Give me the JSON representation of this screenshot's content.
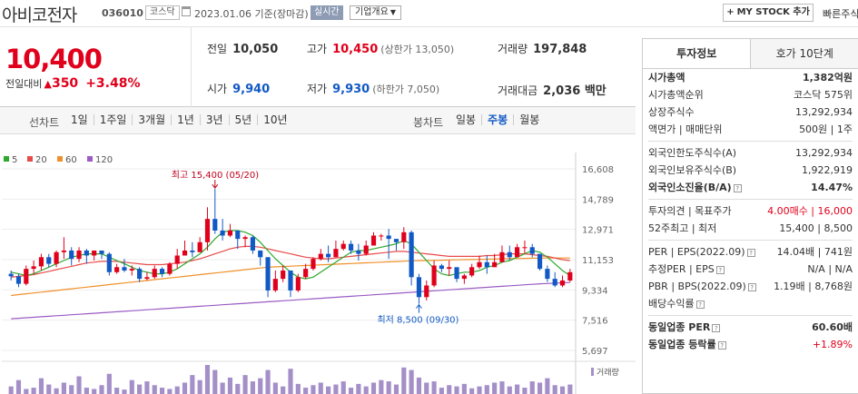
{
  "header": {
    "company_name": "아비코전자",
    "code": "036010",
    "market": "코스닥",
    "date_text": "2023.01.06  기준(장마감)",
    "realtime_label": "실시간",
    "company_overview_label": "기업개요",
    "mystock_label": "MY STOCK 추가",
    "quick_search_label": "빠른주식"
  },
  "summary": {
    "price": "10,400",
    "change_label": "전일대비",
    "change_value": "350",
    "change_pct": "+3.48%",
    "prev_close_label": "전일",
    "prev_close": "10,050",
    "high_label": "고가",
    "high": "10,450",
    "upper_limit": "(상한가 13,050)",
    "volume_label": "거래량",
    "volume": "197,848",
    "open_label": "시가",
    "open": "9,940",
    "low_label": "저가",
    "low": "9,930",
    "lower_limit": "(하한가 7,050)",
    "amount_label": "거래대금",
    "amount": "2,036 백만"
  },
  "period": {
    "label": "선차트",
    "tabs": [
      "1일",
      "1주일",
      "3개월",
      "1년",
      "3년",
      "5년",
      "10년"
    ],
    "bong_label": "봉차트",
    "bong_tabs": [
      "일봉",
      "주봉",
      "월봉"
    ],
    "bong_active": 1
  },
  "chart_data": {
    "type": "candlestick",
    "legend": [
      {
        "name": "5",
        "color": "#2fa82f"
      },
      {
        "name": "20",
        "color": "#e84a4a"
      },
      {
        "name": "60",
        "color": "#f0902a"
      },
      {
        "name": "120",
        "color": "#9a5cc4"
      }
    ],
    "y_ticks": [
      "16,608",
      "14,789",
      "12,971",
      "11,153",
      "9,334",
      "7,516",
      "5,697"
    ],
    "ylim": [
      5697,
      16608
    ],
    "high_annotation": "최고 15,400 (05/20)",
    "low_annotation": "최저 8,500 (09/30)",
    "volume_label": "거래량",
    "candles": [
      [
        10300,
        10150,
        10500,
        9900
      ],
      [
        10150,
        9700,
        10300,
        9500
      ],
      [
        9700,
        10600,
        10800,
        9600
      ],
      [
        10600,
        10750,
        11100,
        10300
      ],
      [
        10750,
        11300,
        11500,
        10500
      ],
      [
        11300,
        10900,
        11500,
        10700
      ],
      [
        10900,
        11600,
        11700,
        10700
      ],
      [
        11600,
        11700,
        12500,
        11200
      ],
      [
        11700,
        11200,
        11900,
        10800
      ],
      [
        11200,
        11700,
        11900,
        11000
      ],
      [
        11700,
        11400,
        11800,
        10900
      ],
      [
        11400,
        11700,
        11700,
        11100
      ],
      [
        11700,
        11500,
        11700,
        11200
      ],
      [
        11500,
        10400,
        11600,
        10200
      ],
      [
        10400,
        10700,
        10900,
        10300
      ],
      [
        10700,
        10500,
        11200,
        10400
      ],
      [
        10500,
        10600,
        10800,
        10200
      ],
      [
        10600,
        10000,
        10700,
        9800
      ],
      [
        10000,
        10100,
        10400,
        9900
      ],
      [
        10100,
        10600,
        10800,
        10000
      ],
      [
        10600,
        10300,
        10700,
        10100
      ],
      [
        10300,
        10900,
        11000,
        10200
      ],
      [
        10900,
        11400,
        11800,
        10600
      ],
      [
        11400,
        11700,
        12300,
        11400
      ],
      [
        11700,
        11600,
        12200,
        11300
      ],
      [
        11600,
        12200,
        12500,
        11900
      ],
      [
        12200,
        13600,
        14300,
        11700
      ],
      [
        13600,
        12900,
        15400,
        12700
      ],
      [
        12900,
        12600,
        13600,
        12300
      ],
      [
        12600,
        12900,
        13300,
        12500
      ],
      [
        12900,
        12400,
        12800,
        11800
      ],
      [
        12400,
        12500,
        12600,
        11900
      ],
      [
        12500,
        11700,
        12600,
        11500
      ],
      [
        11700,
        11300,
        11700,
        10800
      ],
      [
        11300,
        9300,
        11300,
        8900
      ],
      [
        9300,
        10000,
        10500,
        9200
      ],
      [
        10000,
        10500,
        10800,
        9800
      ],
      [
        10500,
        9300,
        10400,
        8900
      ],
      [
        9300,
        10100,
        10300,
        9200
      ],
      [
        10100,
        10600,
        10900,
        10000
      ],
      [
        10600,
        11200,
        11300,
        10500
      ],
      [
        11200,
        11500,
        11800,
        11100
      ],
      [
        11500,
        11300,
        12000,
        11000
      ],
      [
        11300,
        11800,
        12300,
        11300
      ],
      [
        11800,
        12100,
        12300,
        11700
      ],
      [
        12100,
        11700,
        12300,
        11500
      ],
      [
        11700,
        11500,
        12100,
        11100
      ],
      [
        11500,
        12000,
        12300,
        11400
      ],
      [
        12000,
        12600,
        12800,
        12000
      ],
      [
        12600,
        12600,
        12700,
        12300
      ],
      [
        12600,
        12400,
        13000,
        11200
      ],
      [
        12400,
        12200,
        12400,
        11700
      ],
      [
        12200,
        12800,
        13100,
        11800
      ],
      [
        12800,
        10100,
        12900,
        9600
      ],
      [
        10100,
        8900,
        10300,
        8500
      ],
      [
        8900,
        9600,
        9900,
        8700
      ],
      [
        9600,
        10800,
        11100,
        9500
      ],
      [
        10800,
        10600,
        10900,
        10400
      ],
      [
        10600,
        10700,
        11100,
        10200
      ],
      [
        10700,
        10000,
        10600,
        9800
      ],
      [
        10000,
        10200,
        10300,
        9700
      ],
      [
        10200,
        10700,
        10900,
        10100
      ],
      [
        10700,
        11000,
        11400,
        10600
      ],
      [
        11000,
        10700,
        11400,
        10300
      ],
      [
        10700,
        11000,
        11500,
        10700
      ],
      [
        11000,
        11600,
        12000,
        11000
      ],
      [
        11600,
        11300,
        12000,
        11100
      ],
      [
        11300,
        11900,
        12100,
        11300
      ],
      [
        11900,
        11900,
        12300,
        11500
      ],
      [
        11900,
        11500,
        12100,
        11300
      ],
      [
        11500,
        10600,
        11500,
        10500
      ],
      [
        10600,
        10000,
        10800,
        9800
      ],
      [
        10000,
        9600,
        10400,
        9500
      ],
      [
        9600,
        9900,
        10200,
        9500
      ],
      [
        9900,
        10400,
        10600,
        9800
      ]
    ],
    "ma5": [
      10400,
      10300,
      10200,
      10300,
      10500,
      10700,
      10900,
      11100,
      11300,
      11400,
      11500,
      11500,
      11500,
      11300,
      11100,
      10900,
      10700,
      10500,
      10400,
      10300,
      10300,
      10400,
      10600,
      10900,
      11200,
      11500,
      11900,
      12400,
      12800,
      12900,
      12900,
      12800,
      12600,
      12200,
      11700,
      11200,
      10800,
      10400,
      10100,
      10000,
      10100,
      10400,
      10700,
      11000,
      11300,
      11600,
      11700,
      11700,
      11800,
      11900,
      12000,
      12100,
      12300,
      12100,
      11600,
      11100,
      10600,
      10300,
      10200,
      10300,
      10400,
      10400,
      10500,
      10700,
      10800,
      11000,
      11100,
      11300,
      11500,
      11700,
      11600,
      11300,
      10900,
      10500,
      10200
    ],
    "ma20": [
      10100,
      10150,
      10200,
      10250,
      10350,
      10450,
      10550,
      10650,
      10750,
      10850,
      10950,
      11000,
      11050,
      11050,
      11050,
      11000,
      10950,
      10900,
      10850,
      10850,
      10850,
      10900,
      10950,
      11000,
      11100,
      11200,
      11350,
      11500,
      11650,
      11800,
      11900,
      11950,
      11950,
      11900,
      11800,
      11700,
      11600,
      11500,
      11400,
      11300,
      11250,
      11200,
      11200,
      11250,
      11300,
      11350,
      11400,
      11450,
      11500,
      11550,
      11600,
      11650,
      11650,
      11600,
      11550,
      11500,
      11450,
      11400,
      11350,
      11350,
      11350,
      11350,
      11350,
      11400,
      11400,
      11450,
      11500,
      11500,
      11500,
      11450,
      11400,
      11350,
      11250,
      11150,
      11100
    ],
    "ma60": [
      9000,
      9050,
      9100,
      9150,
      9200,
      9250,
      9300,
      9350,
      9400,
      9450,
      9500,
      9550,
      9600,
      9650,
      9700,
      9750,
      9800,
      9850,
      9900,
      9950,
      10000,
      10050,
      10100,
      10150,
      10200,
      10250,
      10300,
      10350,
      10400,
      10450,
      10500,
      10550,
      10600,
      10650,
      10700,
      10720,
      10740,
      10760,
      10780,
      10800,
      10820,
      10840,
      10860,
      10880,
      10900,
      10920,
      10940,
      10960,
      10980,
      11000,
      11020,
      11040,
      11060,
      11080,
      11090,
      11100,
      11110,
      11120,
      11130,
      11140,
      11150,
      11160,
      11170,
      11180,
      11190,
      11200,
      11210,
      11220,
      11230,
      11240,
      11250,
      11250,
      11250,
      11250,
      11250
    ],
    "ma120": [
      7600,
      7630,
      7660,
      7690,
      7720,
      7750,
      7780,
      7810,
      7840,
      7870,
      7900,
      7930,
      7960,
      7990,
      8020,
      8050,
      8080,
      8110,
      8140,
      8170,
      8200,
      8230,
      8260,
      8290,
      8320,
      8350,
      8380,
      8410,
      8440,
      8470,
      8500,
      8530,
      8560,
      8590,
      8620,
      8650,
      8680,
      8710,
      8740,
      8770,
      8800,
      8830,
      8860,
      8890,
      8920,
      8950,
      8980,
      9010,
      9040,
      9070,
      9100,
      9130,
      9160,
      9190,
      9220,
      9250,
      9280,
      9310,
      9340,
      9370,
      9400,
      9430,
      9460,
      9490,
      9520,
      9550,
      9580,
      9610,
      9640,
      9670,
      9700,
      9720,
      9740,
      9760,
      9780
    ],
    "volumes": [
      12,
      22,
      8,
      10,
      25,
      15,
      9,
      18,
      14,
      28,
      10,
      8,
      14,
      32,
      10,
      7,
      22,
      15,
      20,
      14,
      10,
      8,
      12,
      18,
      30,
      22,
      46,
      38,
      18,
      26,
      16,
      30,
      20,
      25,
      38,
      18,
      12,
      40,
      16,
      10,
      14,
      18,
      12,
      15,
      20,
      10,
      16,
      12,
      18,
      22,
      20,
      15,
      42,
      38,
      26,
      18,
      20,
      10,
      14,
      12,
      16,
      9,
      12,
      14,
      18,
      20,
      12,
      15,
      10,
      20,
      18,
      25,
      14,
      12,
      15
    ]
  },
  "right_panel": {
    "tabs": [
      "투자정보",
      "호가 10단계"
    ],
    "rows": [
      {
        "k": "시가총액",
        "v": "1,382억원",
        "kb": true,
        "vb": true
      },
      {
        "k": "시가총액순위",
        "v": "코스닥 575위"
      },
      {
        "k": "상장주식수",
        "v": "13,292,934"
      },
      {
        "k": "액면가 | 매매단위",
        "v": "500원 | 1주"
      },
      {
        "sep": true
      },
      {
        "k": "외국인한도주식수(A)",
        "v": "13,292,934"
      },
      {
        "k": "외국인보유주식수(B)",
        "v": "1,922,919"
      },
      {
        "k": "외국인소진율(B/A)",
        "v": "14.47%",
        "kb": true,
        "vb": true,
        "help": true
      },
      {
        "sep": true
      },
      {
        "k": "투자의견 | 목표주가",
        "v": "4.00매수 | 16,000",
        "vr": true
      },
      {
        "k": "52주최고 | 최저",
        "v": "15,400 | 8,500"
      },
      {
        "sep": true
      },
      {
        "k": "PER | EPS(2022.09)",
        "v": "14.04배 | 741원",
        "help": true
      },
      {
        "k": "추정PER | EPS",
        "v": "N/A | N/A",
        "help": true
      },
      {
        "k": "PBR | BPS(2022.09)",
        "v": "1.19배 | 8,768원",
        "help": true
      },
      {
        "k": "배당수익률",
        "v": "",
        "help": true
      },
      {
        "sep": true
      },
      {
        "k": "동일업종 PER",
        "v": "60.60배",
        "kb": true,
        "vb": true,
        "help": true
      },
      {
        "k": "동일업종 등락률",
        "v": "+1.89%",
        "kb": true,
        "vr": true,
        "help": true
      }
    ]
  }
}
